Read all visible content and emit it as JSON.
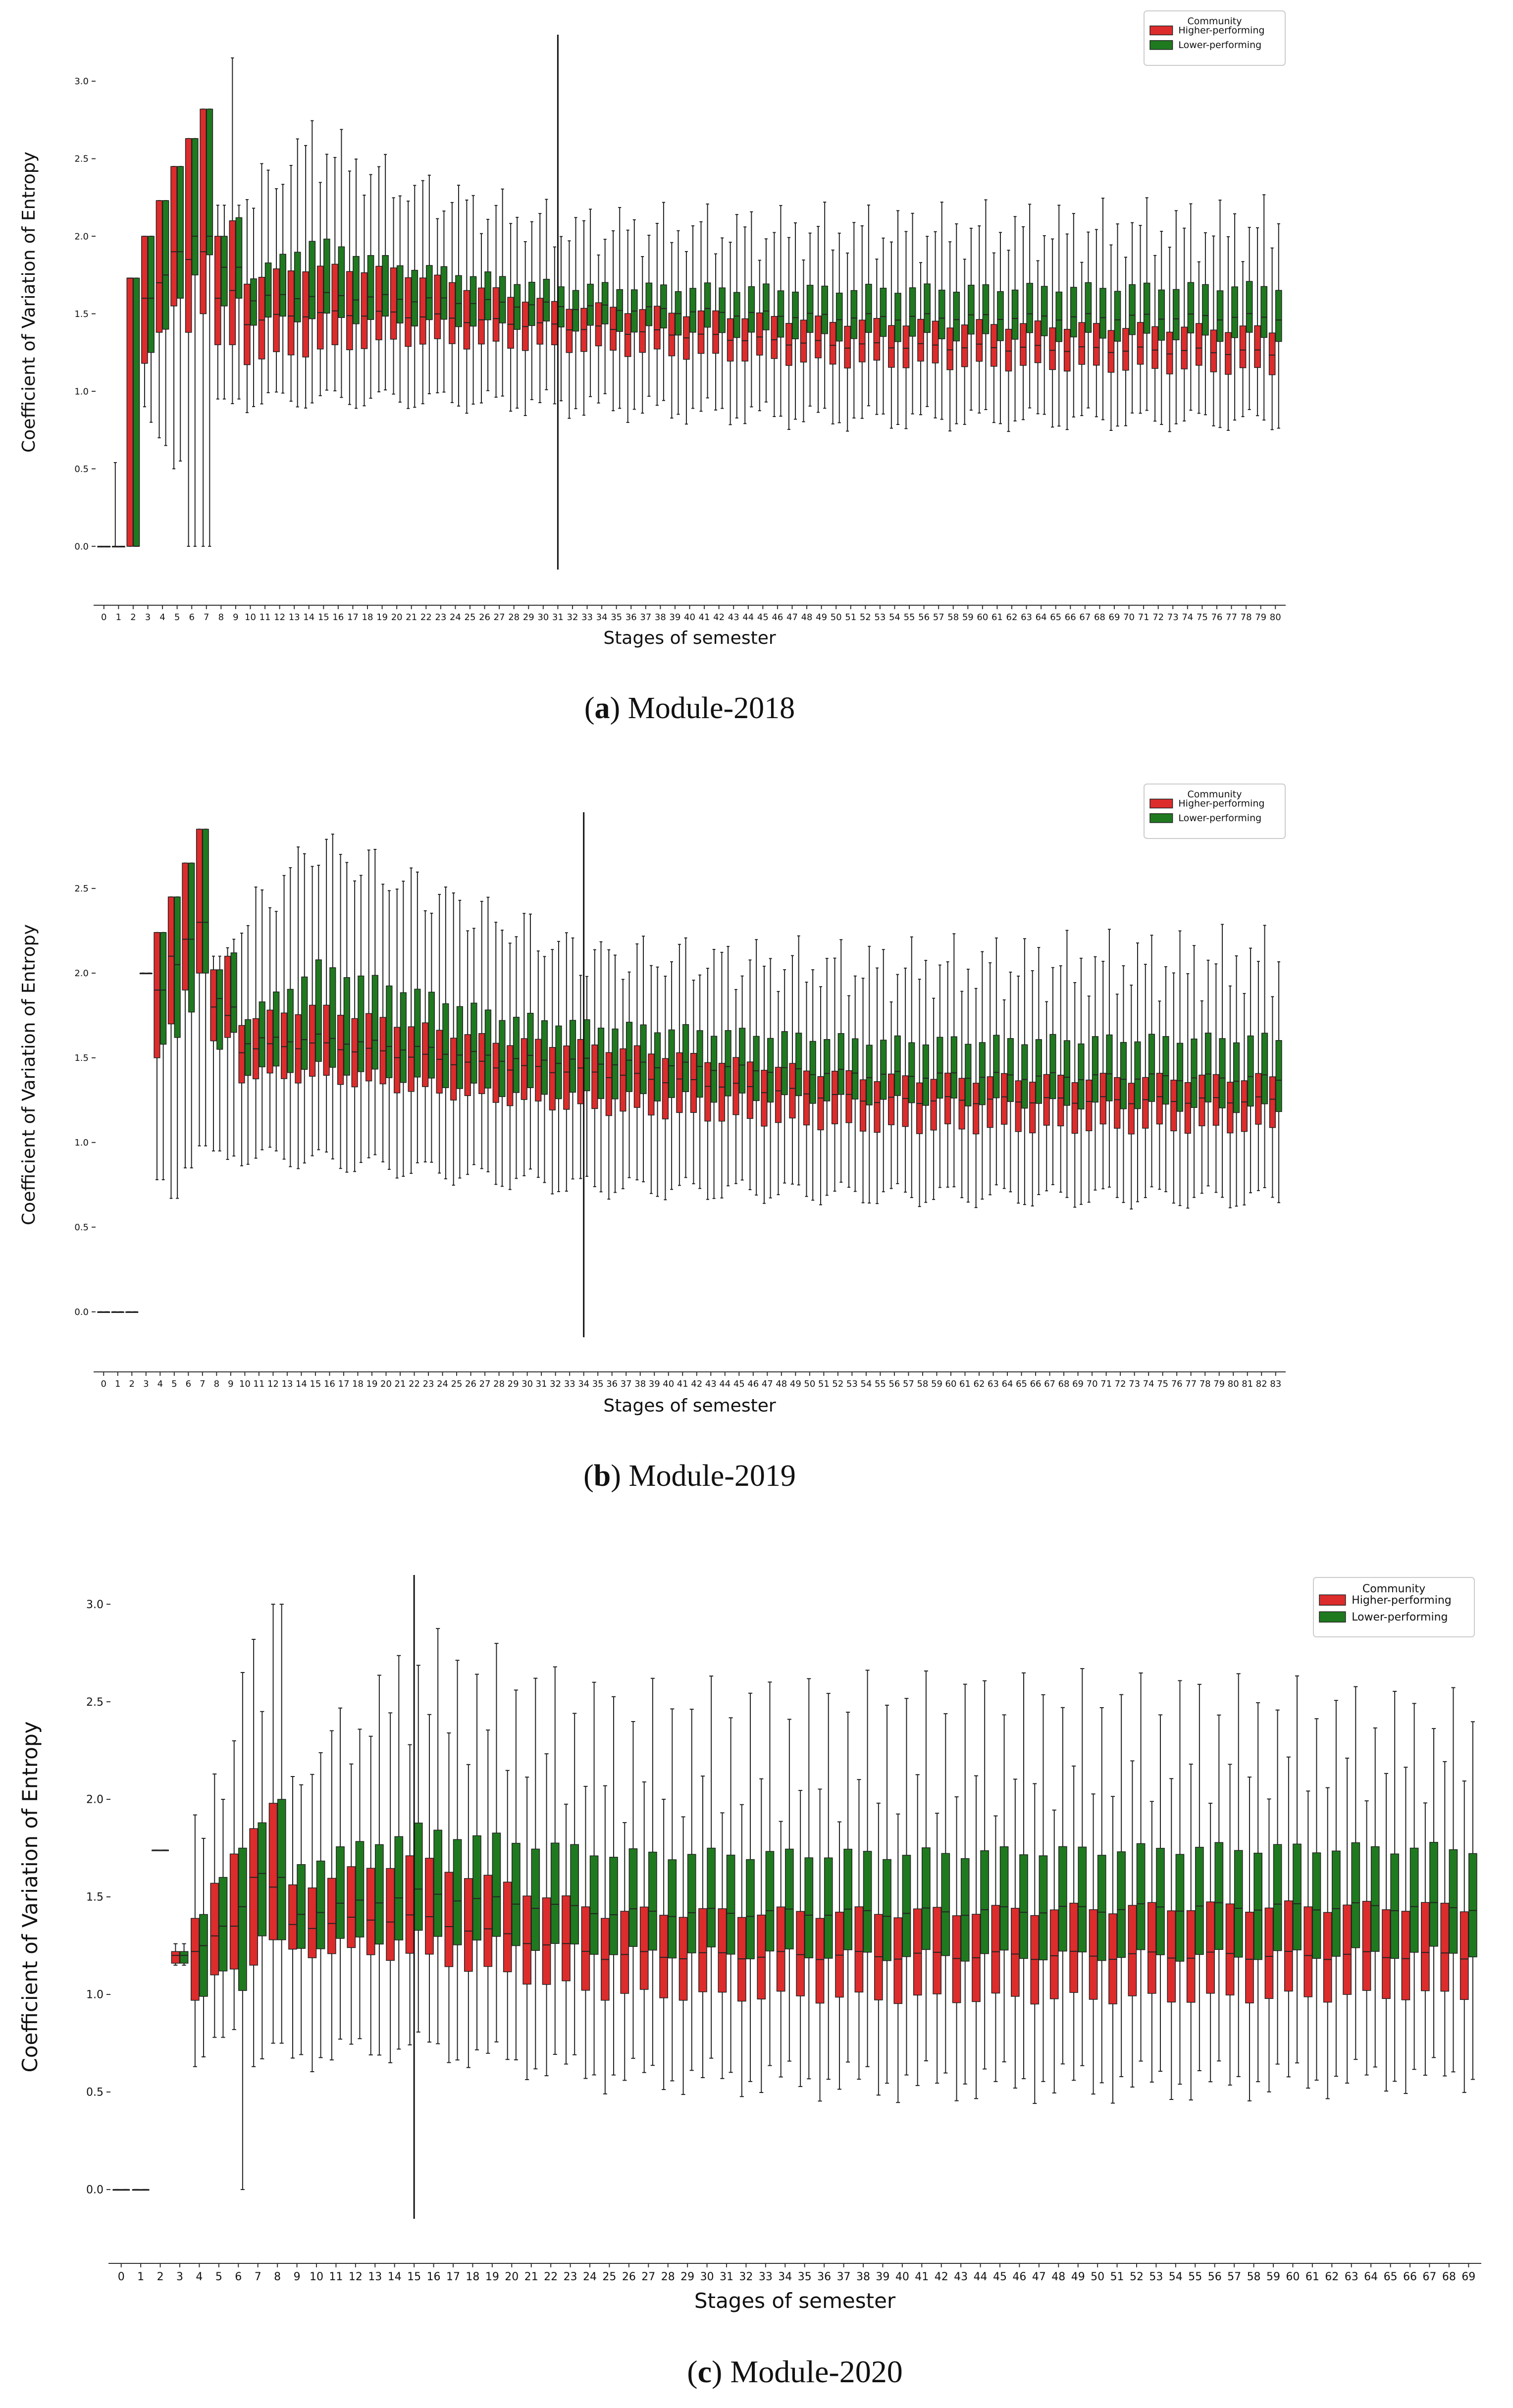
{
  "colors": {
    "higher": "#d62728",
    "lower": "#2ca02c",
    "higher_fill": "#dd2c2c",
    "lower_fill": "#1f7a1f",
    "line": "#222222"
  },
  "chart_data": [
    {
      "type": "box",
      "panel_label": "a",
      "caption_text": "Module-2018",
      "ylabel": "Coefficient of Variation of Entropy",
      "xlabel": "Stages of semester",
      "ylim": [
        -0.15,
        3.3
      ],
      "yticks": [
        0.0,
        0.5,
        1.0,
        1.5,
        2.0,
        2.5,
        3.0
      ],
      "ytick_labels": [
        "0.0",
        "0.5",
        "1.0",
        "1.5",
        "2.0",
        "2.5",
        "3.0"
      ],
      "x_start": 0,
      "x_end": 80,
      "legend": {
        "title": "Community",
        "entries": [
          "Higher-performing",
          "Lower-performing"
        ],
        "position": "top-right"
      },
      "vline": {
        "stage": 31,
        "ymin": -0.15,
        "ymax": 3.3
      },
      "overrides": [
        {
          "stage": 0,
          "higher": [
            0,
            0,
            0,
            0,
            0
          ],
          "lower": [
            0,
            0,
            0,
            0,
            0
          ]
        },
        {
          "stage": 1,
          "higher": [
            0,
            0,
            0,
            0,
            0.54
          ],
          "lower": [
            0,
            0,
            0,
            0,
            0
          ]
        },
        {
          "stage": 2,
          "higher": [
            0,
            0,
            1.73,
            1.73,
            1.73
          ],
          "lower": [
            0,
            0,
            0,
            1.73,
            1.73
          ]
        },
        {
          "stage": 3,
          "higher": [
            0.9,
            1.18,
            1.6,
            2.0,
            2.0
          ],
          "lower": [
            0.8,
            1.25,
            1.6,
            2.0,
            2.0
          ]
        },
        {
          "stage": 4,
          "higher": [
            0.7,
            1.38,
            1.7,
            2.23,
            2.23
          ],
          "lower": [
            0.65,
            1.4,
            1.75,
            2.23,
            2.23
          ]
        },
        {
          "stage": 5,
          "higher": [
            0.5,
            1.55,
            1.9,
            2.45,
            2.45
          ],
          "lower": [
            0.55,
            1.6,
            1.9,
            2.45,
            2.45
          ]
        },
        {
          "stage": 6,
          "higher": [
            0,
            1.38,
            1.85,
            2.63,
            2.63
          ],
          "lower": [
            0,
            1.75,
            2.0,
            2.63,
            2.63
          ]
        },
        {
          "stage": 7,
          "higher": [
            0,
            1.5,
            1.9,
            2.82,
            2.82
          ],
          "lower": [
            0,
            1.88,
            2.0,
            2.82,
            2.82
          ]
        },
        {
          "stage": 8,
          "higher": [
            0.95,
            1.3,
            1.6,
            2.0,
            2.2
          ],
          "lower": [
            0.95,
            1.55,
            1.8,
            2.0,
            2.2
          ]
        },
        {
          "stage": 9,
          "higher": [
            0.92,
            1.3,
            1.65,
            2.1,
            3.15
          ],
          "lower": [
            0.95,
            1.6,
            1.8,
            2.12,
            2.2
          ]
        }
      ],
      "trend": {
        "knots_stage": [
          10,
          14,
          20,
          31,
          50,
          80
        ],
        "higher": {
          "min": [
            0.92,
            0.95,
            0.95,
            0.88,
            0.8,
            0.8
          ],
          "q1": [
            1.2,
            1.25,
            1.32,
            1.28,
            1.18,
            1.13
          ],
          "med": [
            1.45,
            1.5,
            1.5,
            1.42,
            1.3,
            1.25
          ],
          "q3": [
            1.72,
            1.8,
            1.78,
            1.56,
            1.45,
            1.4
          ],
          "max": [
            2.3,
            2.5,
            2.3,
            2.0,
            1.95,
            1.95
          ]
        },
        "lower": {
          "min": [
            0.95,
            0.95,
            0.95,
            0.95,
            0.85,
            0.82
          ],
          "q1": [
            1.45,
            1.48,
            1.45,
            1.42,
            1.35,
            1.35
          ],
          "med": [
            1.6,
            1.62,
            1.6,
            1.55,
            1.48,
            1.48
          ],
          "q3": [
            1.75,
            1.98,
            1.82,
            1.68,
            1.66,
            1.68
          ],
          "max": [
            2.2,
            2.7,
            2.35,
            2.1,
            2.1,
            2.15
          ]
        }
      }
    },
    {
      "type": "box",
      "panel_label": "b",
      "caption_text": "Module-2019",
      "ylabel": "Coefficient of Variation of Entropy",
      "xlabel": "Stages of semester",
      "ylim": [
        -0.15,
        2.95
      ],
      "yticks": [
        0.0,
        0.5,
        1.0,
        1.5,
        2.0,
        2.5
      ],
      "ytick_labels": [
        "0.0",
        "0.5",
        "1.0",
        "1.5",
        "2.0",
        "2.5"
      ],
      "x_start": 0,
      "x_end": 83,
      "legend": {
        "title": "Community",
        "entries": [
          "Higher-performing",
          "Lower-performing"
        ],
        "position": "top-right"
      },
      "vline": {
        "stage": 34,
        "ymin": -0.15,
        "ymax": 2.95
      },
      "overrides": [
        {
          "stage": 0,
          "higher": [
            0,
            0,
            0,
            0,
            0
          ],
          "lower": [
            0,
            0,
            0,
            0,
            0
          ]
        },
        {
          "stage": 1,
          "higher": [
            0,
            0,
            0,
            0,
            0
          ],
          "lower": [
            0,
            0,
            0,
            0,
            0
          ]
        },
        {
          "stage": 2,
          "higher": [
            0,
            0,
            0,
            0,
            0
          ],
          "lower": [
            0,
            0,
            0,
            0,
            0
          ]
        },
        {
          "stage": 3,
          "higher": [
            2.0,
            2.0,
            2.0,
            2.0,
            2.0
          ],
          "lower": [
            2.0,
            2.0,
            2.0,
            2.0,
            2.0
          ]
        },
        {
          "stage": 4,
          "higher": [
            0.78,
            1.5,
            1.9,
            2.24,
            2.24
          ],
          "lower": [
            0.78,
            1.58,
            1.9,
            2.24,
            2.24
          ]
        },
        {
          "stage": 5,
          "higher": [
            0.67,
            1.7,
            2.1,
            2.45,
            2.45
          ],
          "lower": [
            0.67,
            1.62,
            2.05,
            2.45,
            2.45
          ]
        },
        {
          "stage": 6,
          "higher": [
            0.85,
            1.9,
            2.2,
            2.65,
            2.65
          ],
          "lower": [
            0.85,
            1.77,
            2.2,
            2.65,
            2.65
          ]
        },
        {
          "stage": 7,
          "higher": [
            0.98,
            2.0,
            2.3,
            2.85,
            2.85
          ],
          "lower": [
            0.98,
            2.0,
            2.3,
            2.85,
            2.85
          ]
        },
        {
          "stage": 8,
          "higher": [
            0.95,
            1.6,
            1.8,
            2.02,
            2.1
          ],
          "lower": [
            0.95,
            1.55,
            1.85,
            2.02,
            2.1
          ]
        },
        {
          "stage": 9,
          "higher": [
            0.9,
            1.62,
            1.75,
            2.1,
            2.15
          ],
          "lower": [
            0.92,
            1.65,
            1.8,
            2.12,
            2.2
          ]
        }
      ],
      "trend": {
        "knots_stage": [
          10,
          15,
          28,
          34,
          55,
          83
        ],
        "higher": {
          "min": [
            0.92,
            0.9,
            0.78,
            0.73,
            0.68,
            0.66
          ],
          "q1": [
            1.38,
            1.38,
            1.25,
            1.2,
            1.08,
            1.08
          ],
          "med": [
            1.55,
            1.58,
            1.45,
            1.42,
            1.25,
            1.25
          ],
          "q3": [
            1.72,
            1.8,
            1.6,
            1.58,
            1.38,
            1.38
          ],
          "max": [
            2.3,
            2.75,
            2.3,
            2.1,
            1.95,
            1.95
          ]
        },
        "lower": {
          "min": [
            0.92,
            0.9,
            0.8,
            0.75,
            0.7,
            0.68
          ],
          "q1": [
            1.42,
            1.45,
            1.3,
            1.28,
            1.25,
            1.2
          ],
          "med": [
            1.6,
            1.62,
            1.5,
            1.48,
            1.4,
            1.38
          ],
          "q3": [
            1.75,
            2.05,
            1.75,
            1.7,
            1.6,
            1.62
          ],
          "max": [
            2.3,
            2.75,
            2.3,
            2.1,
            2.1,
            2.18
          ]
        }
      }
    },
    {
      "type": "box",
      "panel_label": "c",
      "caption_text": "Module-2020",
      "ylabel": "Coefficient of Variation of Entropy",
      "xlabel": "Stages of semester",
      "ylim": [
        -0.15,
        3.15
      ],
      "yticks": [
        0.0,
        0.5,
        1.0,
        1.5,
        2.0,
        2.5,
        3.0
      ],
      "ytick_labels": [
        "0.0",
        "0.5",
        "1.0",
        "1.5",
        "2.0",
        "2.5",
        "3.0"
      ],
      "x_start": 0,
      "x_end": 69,
      "legend": {
        "title": "Community",
        "entries": [
          "Higher-performing",
          "Lower-performing"
        ],
        "position": "top-right"
      },
      "vline": {
        "stage": 15,
        "ymin": -0.15,
        "ymax": 3.15
      },
      "overrides": [
        {
          "stage": 0,
          "higher": [
            0,
            0,
            0,
            0,
            0
          ],
          "lower": [
            0,
            0,
            0,
            0,
            0
          ]
        },
        {
          "stage": 1,
          "higher": [
            0,
            0,
            0,
            0,
            0
          ],
          "lower": [
            0,
            0,
            0,
            0,
            0
          ]
        },
        {
          "stage": 2,
          "higher": [
            1.74,
            1.74,
            1.74,
            1.74,
            1.74
          ],
          "lower": [
            1.74,
            1.74,
            1.74,
            1.74,
            1.74
          ]
        },
        {
          "stage": 3,
          "higher": [
            1.15,
            1.16,
            1.2,
            1.22,
            1.26
          ],
          "lower": [
            1.15,
            1.16,
            1.2,
            1.22,
            1.26
          ]
        },
        {
          "stage": 4,
          "higher": [
            0.63,
            0.97,
            1.22,
            1.39,
            1.92
          ],
          "lower": [
            0.68,
            0.99,
            1.25,
            1.41,
            1.8
          ]
        },
        {
          "stage": 5,
          "higher": [
            0.78,
            1.1,
            1.3,
            1.57,
            2.13
          ],
          "lower": [
            0.78,
            1.12,
            1.35,
            1.6,
            2.0
          ]
        },
        {
          "stage": 6,
          "higher": [
            0.82,
            1.13,
            1.35,
            1.72,
            2.3
          ],
          "lower": [
            0.0,
            1.02,
            1.45,
            1.75,
            2.65
          ]
        },
        {
          "stage": 7,
          "higher": [
            0.63,
            1.15,
            1.6,
            1.85,
            2.82
          ],
          "lower": [
            0.67,
            1.3,
            1.62,
            1.88,
            2.45
          ]
        },
        {
          "stage": 8,
          "higher": [
            0.75,
            1.28,
            1.55,
            1.98,
            3.0
          ],
          "lower": [
            0.75,
            1.28,
            1.6,
            2.0,
            3.0
          ]
        }
      ],
      "trend": {
        "knots_stage": [
          9,
          15,
          25,
          40,
          55,
          69
        ],
        "higher": {
          "min": [
            0.65,
            0.72,
            0.55,
            0.5,
            0.5,
            0.55
          ],
          "q1": [
            1.22,
            1.2,
            1.0,
            0.98,
            0.98,
            1.0
          ],
          "med": [
            1.35,
            1.4,
            1.2,
            1.2,
            1.2,
            1.2
          ],
          "q3": [
            1.55,
            1.7,
            1.42,
            1.42,
            1.45,
            1.45
          ],
          "max": [
            2.15,
            2.4,
            2.0,
            2.0,
            2.1,
            2.1
          ]
        },
        "lower": {
          "min": [
            0.72,
            0.75,
            0.62,
            0.6,
            0.6,
            0.62
          ],
          "q1": [
            1.25,
            1.3,
            1.22,
            1.2,
            1.2,
            1.22
          ],
          "med": [
            1.42,
            1.52,
            1.42,
            1.42,
            1.45,
            1.45
          ],
          "q3": [
            1.68,
            1.85,
            1.72,
            1.72,
            1.75,
            1.75
          ],
          "max": [
            2.15,
            2.8,
            2.5,
            2.55,
            2.55,
            2.45
          ]
        }
      }
    }
  ]
}
